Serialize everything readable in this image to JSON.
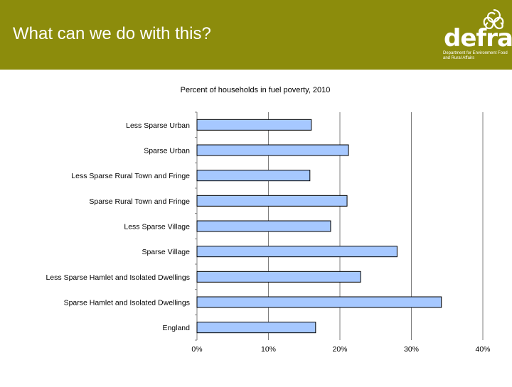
{
  "slide": {
    "title": "What can we do with this?",
    "logo_text": "defra",
    "logo_subtitle": "Department for Environment Food and Rural Affairs",
    "header_color": "#8c8c0c"
  },
  "chart_data": {
    "type": "bar",
    "orientation": "horizontal",
    "title": "Percent of households in fuel poverty, 2010",
    "categories": [
      "Less Sparse Urban",
      "Sparse Urban",
      "Less Sparse Rural Town and Fringe",
      "Sparse Rural Town and Fringe",
      "Less Sparse Village",
      "Sparse Village",
      "Less Sparse Hamlet and Isolated Dwellings",
      "Sparse Hamlet and Isolated Dwellings",
      "England"
    ],
    "values": [
      0.16,
      0.212,
      0.158,
      0.21,
      0.187,
      0.28,
      0.229,
      0.342,
      0.166
    ],
    "xlim": [
      0,
      0.4
    ],
    "x_ticks": [
      0,
      0.1,
      0.2,
      0.3,
      0.4
    ],
    "x_tick_labels": [
      "0%",
      "10%",
      "20%",
      "30%",
      "40%"
    ],
    "xlabel": "",
    "ylabel": "",
    "grid": "vertical",
    "bar_color": "#a6c8ff",
    "legend": "none"
  }
}
